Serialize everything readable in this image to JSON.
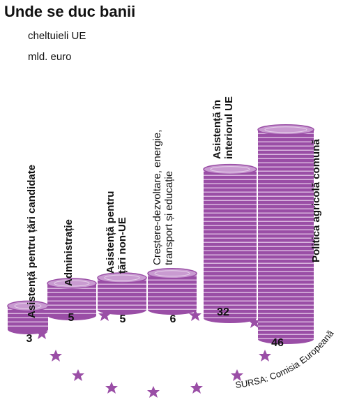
{
  "chart_data": {
    "type": "bar",
    "title": "Unde se duc banii",
    "subtitle": "cheltuieli UE",
    "unit": "mld. euro",
    "categories": [
      "Asistență pentru țări candidate",
      "Administrație",
      "Asistență pentru\nțări non-UE",
      "Creștere-dezvoltare, energie,\ntransport și educație",
      "Asistență în\ninteriorul UE",
      "Politica agricolă comună"
    ],
    "values": [
      3,
      5,
      5,
      6,
      32,
      46
    ],
    "color": "#9a4ea6",
    "source": "SURSA: Comisia Europeană"
  }
}
